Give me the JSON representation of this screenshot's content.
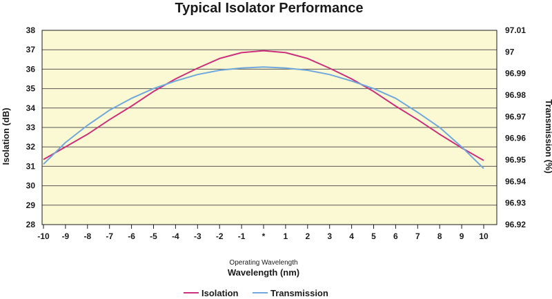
{
  "chart_data": {
    "type": "line",
    "title": "Typical Isolator Performance",
    "xlabel_small": "Operating Wavelength",
    "xlabel": "Wavelength (nm)",
    "ylabel_left": "Isolation (dB)",
    "ylabel_right": "Transmission (%)",
    "x": [
      -10,
      -9,
      -8,
      -7,
      -6,
      -5,
      -4,
      -3,
      -2,
      -1,
      0,
      1,
      2,
      3,
      4,
      5,
      6,
      7,
      8,
      9,
      10
    ],
    "x_tick_labels": [
      "-10",
      "-9",
      "-8",
      "-7",
      "-6",
      "-5",
      "-4",
      "-3",
      "-2",
      "-1",
      "*",
      "1",
      "2",
      "3",
      "4",
      "5",
      "6",
      "7",
      "8",
      "9",
      "10"
    ],
    "ylim_left": [
      28,
      38
    ],
    "yticks_left": [
      "28",
      "29",
      "30",
      "31",
      "32",
      "33",
      "34",
      "35",
      "36",
      "37",
      "38"
    ],
    "ylim_right": [
      96.92,
      97.01
    ],
    "yticks_right": [
      "96.92",
      "96.93",
      "96.94",
      "96.95",
      "96.96",
      "96.97",
      "96.98",
      "96.99",
      "97",
      "97.01"
    ],
    "grid": "horizontal",
    "legend_position": "bottom-center",
    "background_color": "#fbf8d4",
    "series": [
      {
        "name": "Isolation",
        "axis": "left",
        "color": "#cc2f7b",
        "values": [
          31.35,
          32.0,
          32.65,
          33.4,
          34.1,
          34.85,
          35.5,
          36.05,
          36.55,
          36.85,
          36.95,
          36.85,
          36.55,
          36.05,
          35.5,
          34.85,
          34.1,
          33.4,
          32.65,
          31.95,
          31.3
        ]
      },
      {
        "name": "Transmission",
        "axis": "right",
        "color": "#6fa8dc",
        "values": [
          96.948,
          96.958,
          96.966,
          96.973,
          96.9785,
          96.983,
          96.9865,
          96.9895,
          96.9915,
          96.9925,
          96.993,
          96.9925,
          96.9915,
          96.9895,
          96.9865,
          96.983,
          96.9785,
          96.972,
          96.965,
          96.956,
          96.946
        ]
      }
    ]
  }
}
